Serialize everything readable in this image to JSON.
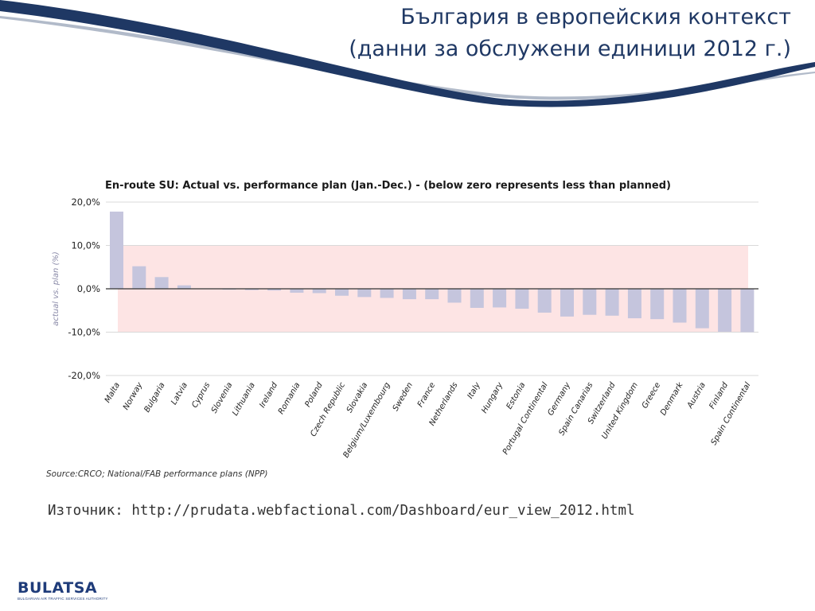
{
  "slide": {
    "title_line1": "България в европейския контекст",
    "title_line2": "(данни за обслужени единици 2012 г.)",
    "source_text": "Източник: http://prudata.webfactional.com/Dashboard/eur_view_2012.html"
  },
  "logo": {
    "name": "BULATSA",
    "subtitle": "BULGARIAN AIR TRAFFIC SERVICES AUTHORITY"
  },
  "colors": {
    "title": "#1f3864",
    "bar": "#c5c5dd",
    "band": "#fde4e4",
    "header_swoosh": "#1f3864"
  },
  "chart_data": {
    "type": "bar",
    "title": "En-route SU: Actual vs. performance plan (Jan.-Dec.) - (below zero represents less than planned)",
    "ylabel": "actual vs. plan (%)",
    "ylim": [
      -20,
      20
    ],
    "yticks": [
      "20,0%",
      "10,0%",
      "0,0%",
      "-10,0%",
      "-20,0%"
    ],
    "ytick_values": [
      20,
      10,
      0,
      -10,
      -20
    ],
    "band_range": [
      -10,
      10
    ],
    "grid": true,
    "categories": [
      "Malta",
      "Norway",
      "Bulgaria",
      "Latvia",
      "Cyprus",
      "Slovenia",
      "Lithuania",
      "Ireland",
      "Romania",
      "Poland",
      "Czech Republic",
      "Slovakia",
      "Belgium/Luxembourg",
      "Sweden",
      "France",
      "Netherlands",
      "Italy",
      "Hungary",
      "Estonia",
      "Portugal Continental",
      "Germany",
      "Spain Canarias",
      "Switzerland",
      "United Kingdom",
      "Greece",
      "Denmark",
      "Austria",
      "Finland",
      "Spain Continental"
    ],
    "values": [
      17.8,
      5.2,
      2.7,
      0.8,
      0.1,
      -0.2,
      -0.3,
      -0.4,
      -0.9,
      -1.0,
      -1.6,
      -1.9,
      -2.1,
      -2.4,
      -2.4,
      -3.2,
      -4.4,
      -4.3,
      -4.6,
      -5.5,
      -6.4,
      -6.0,
      -6.2,
      -6.8,
      -7.0,
      -7.8,
      -9.1,
      -9.9,
      -10.0
    ],
    "source": "Source:CRCO; National/FAB performance plans (NPP)"
  }
}
